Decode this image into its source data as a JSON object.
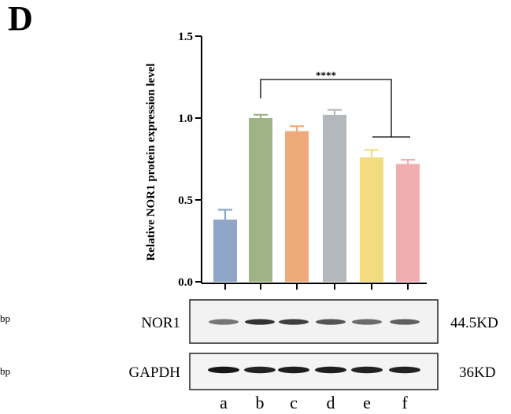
{
  "panel_label": "D",
  "cut_off_labels": [
    "bp",
    "bp"
  ],
  "chart_data": {
    "type": "bar",
    "title": "",
    "xlabel": "",
    "ylabel": "Relative NOR1 protein expression level",
    "ylim": [
      0,
      1.5
    ],
    "yticks": [
      "0.0",
      "0.5",
      "1.0",
      "1.5"
    ],
    "categories": [
      "a",
      "b",
      "c",
      "d",
      "e",
      "f"
    ],
    "values": [
      0.38,
      1.0,
      0.92,
      1.02,
      0.76,
      0.72
    ],
    "errors": [
      0.06,
      0.02,
      0.03,
      0.03,
      0.045,
      0.025
    ],
    "bar_colors": [
      "#8fa6c9",
      "#9fb485",
      "#eeaa7a",
      "#b2b8bc",
      "#f2dd7e",
      "#f0aeb1"
    ],
    "significance": "****",
    "grid": false
  },
  "blots": [
    {
      "name": "NOR1",
      "size": "44.5KD"
    },
    {
      "name": "GAPDH",
      "size": "36KD"
    }
  ],
  "lanes": [
    "a",
    "b",
    "c",
    "d",
    "e",
    "f"
  ]
}
